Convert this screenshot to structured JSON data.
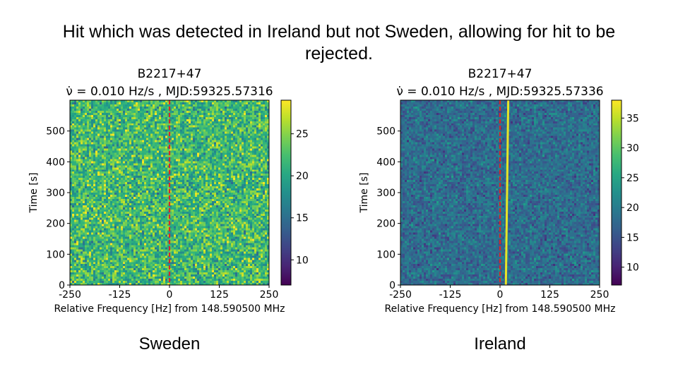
{
  "slide": {
    "title": "Hit which was detected in Ireland but not Sweden, allowing for hit to be rejected."
  },
  "chart_data": [
    {
      "type": "heatmap",
      "title": "B2217+47",
      "subtitle": "ν̇ = 0.010 Hz/s , MJD:59325.57316",
      "xlabel": "Relative Frequency [Hz] from 148.590500 MHz",
      "ylabel": "Time [s]",
      "xlim": [
        -250,
        250
      ],
      "ylim": [
        0,
        600
      ],
      "x_ticks": [
        -250,
        -125,
        0,
        125,
        250
      ],
      "x_tick_labels": [
        "-250",
        "-125",
        "0",
        "125",
        "250"
      ],
      "y_ticks": [
        0,
        100,
        200,
        300,
        400,
        500
      ],
      "y_tick_labels": [
        "0",
        "100",
        "200",
        "300",
        "400",
        "500"
      ],
      "colormap": "viridis",
      "color_range": [
        7,
        29
      ],
      "colorbar_ticks": [
        10,
        15,
        20,
        25
      ],
      "colorbar_tick_labels": [
        "10",
        "15",
        "20",
        "25"
      ],
      "noise_mean": 22,
      "noise_spread": 3,
      "hit_marker": {
        "x": 0,
        "color": "#d62728",
        "style": "dashed"
      },
      "signal": null,
      "caption": "Sweden"
    },
    {
      "type": "heatmap",
      "title": "B2217+47",
      "subtitle": "ν̇ = 0.010 Hz/s , MJD:59325.57336",
      "xlabel": "Relative Frequency [Hz] from 148.590500 MHz",
      "ylabel": "Time [s]",
      "xlim": [
        -250,
        250
      ],
      "ylim": [
        0,
        600
      ],
      "x_ticks": [
        -250,
        -125,
        0,
        125,
        250
      ],
      "x_tick_labels": [
        "-250",
        "-125",
        "0",
        "125",
        "250"
      ],
      "y_ticks": [
        0,
        100,
        200,
        300,
        400,
        500
      ],
      "y_tick_labels": [
        "0",
        "100",
        "200",
        "300",
        "400",
        "500"
      ],
      "colormap": "viridis",
      "color_range": [
        7,
        38
      ],
      "colorbar_ticks": [
        10,
        15,
        20,
        25,
        30,
        35
      ],
      "colorbar_tick_labels": [
        "10",
        "15",
        "20",
        "25",
        "30",
        "35"
      ],
      "noise_mean": 18,
      "noise_spread": 2.5,
      "hit_marker": {
        "x": 0,
        "color": "#d62728",
        "style": "dashed"
      },
      "signal": {
        "x_start": 12,
        "x_end": 18,
        "value": 37
      },
      "caption": "Ireland"
    }
  ]
}
